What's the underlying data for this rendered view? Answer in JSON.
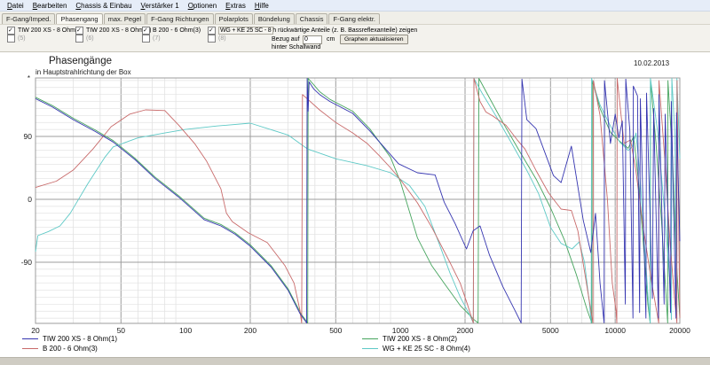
{
  "menu": {
    "items": [
      "Datei",
      "Bearbeiten",
      "Chassis & Einbau",
      "Verstärker 1",
      "Optionen",
      "Extras",
      "Hilfe"
    ]
  },
  "tabs": {
    "active": "Phasengang",
    "items": [
      "F-Gang/Imped.",
      "Phasengang",
      "max. Pegel",
      "F-Gang Richtungen",
      "Polarplots",
      "Bündelung",
      "Chassis",
      "F-Gang elektr."
    ]
  },
  "controls": {
    "chassis_checkboxes": [
      {
        "label": "TIW 200 XS - 8 Ohm(1)",
        "checked": true,
        "sub": "(5)",
        "x": 8
      },
      {
        "label": "TIW 200 XS - 8 Ohm(2)",
        "checked": true,
        "sub": "(6)",
        "x": 85
      },
      {
        "label": "B 200 - 6 Ohm(3)",
        "checked": true,
        "sub": "(7)",
        "x": 160
      },
      {
        "label": "WG + KE 25 SC - 8 Oh",
        "checked": true,
        "sub": "(8)",
        "x": 234,
        "boxed": true
      }
    ],
    "rear_option_label": "auch rückwärtige Anteile (z. B. Bassreflexanteile) zeigen",
    "bezug_label": "Bezug auf",
    "bezug_value": "0",
    "unit_label": "cm",
    "update_button": "Graphen aktualisieren",
    "behind_label": "hinter Schallwand"
  },
  "chart_data": {
    "type": "line",
    "title": "Phasengänge",
    "subtitle": "in Hauptstrahlrichtung der Box",
    "date": "10.02.2013",
    "axis_marker": "*",
    "x_axis": {
      "scale": "log",
      "min": 20,
      "max": 20000,
      "ticks": [
        20,
        50,
        100,
        200,
        500,
        1000,
        2000,
        5000,
        10000,
        20000
      ],
      "grid": true
    },
    "y_axis": {
      "unit": "degrees",
      "min": -178,
      "max": 175,
      "ticks": [
        90,
        0,
        -90
      ],
      "minor_step": 10,
      "grid": true
    },
    "series": [
      {
        "name": "TIW 200 XS - 8 Ohm(2)",
        "color": "#46a45e",
        "points": [
          [
            20,
            146
          ],
          [
            24,
            134
          ],
          [
            30,
            116
          ],
          [
            38,
            99
          ],
          [
            46,
            84
          ],
          [
            58,
            59
          ],
          [
            72,
            32
          ],
          [
            93,
            5
          ],
          [
            122,
            -27
          ],
          [
            146,
            -36
          ],
          [
            170,
            -48
          ],
          [
            200,
            -65
          ],
          [
            250,
            -95
          ],
          [
            300,
            -128
          ],
          [
            345,
            -164
          ],
          [
            370,
            -177
          ],
          [
            372,
            174
          ],
          [
            400,
            162
          ],
          [
            421,
            154
          ],
          [
            470,
            143
          ],
          [
            600,
            126
          ],
          [
            720,
            101
          ],
          [
            900,
            60
          ],
          [
            1000,
            25
          ],
          [
            1200,
            -55
          ],
          [
            1400,
            -95
          ],
          [
            1600,
            -120
          ],
          [
            1900,
            -152
          ],
          [
            2200,
            -172
          ],
          [
            2300,
            -177
          ],
          [
            2320,
            174
          ],
          [
            2600,
            145
          ],
          [
            3000,
            110
          ],
          [
            3600,
            68
          ],
          [
            4300,
            28
          ],
          [
            5000,
            -12
          ],
          [
            5800,
            -58
          ],
          [
            6600,
            -108
          ],
          [
            7400,
            -158
          ],
          [
            7780,
            -177
          ],
          [
            7820,
            170
          ],
          [
            8500,
            130
          ],
          [
            9500,
            96
          ],
          [
            10500,
            83
          ],
          [
            11500,
            73
          ],
          [
            12200,
            90
          ],
          [
            12800,
            30
          ],
          [
            13500,
            -60
          ],
          [
            14200,
            -150
          ],
          [
            14550,
            -177
          ],
          [
            14600,
            170
          ],
          [
            15500,
            80
          ],
          [
            16500,
            -40
          ],
          [
            17200,
            -130
          ],
          [
            17550,
            -177
          ],
          [
            17600,
            170
          ],
          [
            18500,
            60
          ],
          [
            19200,
            -80
          ],
          [
            20000,
            -170
          ]
        ]
      },
      {
        "name": "WG + KE 25 SC - 8 Ohm(4)",
        "color": "#5ec9c6",
        "points": [
          [
            20,
            -75
          ],
          [
            20.5,
            -52
          ],
          [
            23,
            -46
          ],
          [
            26,
            -38
          ],
          [
            29,
            -20
          ],
          [
            35,
            22
          ],
          [
            42,
            60
          ],
          [
            46,
            75
          ],
          [
            60,
            88
          ],
          [
            80,
            95
          ],
          [
            100,
            100
          ],
          [
            140,
            105
          ],
          [
            200,
            109
          ],
          [
            260,
            98
          ],
          [
            300,
            92
          ],
          [
            370,
            72
          ],
          [
            500,
            58
          ],
          [
            700,
            48
          ],
          [
            900,
            38
          ],
          [
            1100,
            20
          ],
          [
            1300,
            -10
          ],
          [
            1500,
            -60
          ],
          [
            1700,
            -105
          ],
          [
            1900,
            -140
          ],
          [
            2100,
            -165
          ],
          [
            2185,
            -177
          ],
          [
            2200,
            174
          ],
          [
            2400,
            152
          ],
          [
            2800,
            118
          ],
          [
            3300,
            80
          ],
          [
            3900,
            40
          ],
          [
            4400,
            8
          ],
          [
            5000,
            -40
          ],
          [
            5600,
            -63
          ],
          [
            6300,
            -71
          ],
          [
            6800,
            -61
          ],
          [
            7200,
            -90
          ],
          [
            7600,
            -150
          ],
          [
            7730,
            -177
          ],
          [
            7770,
            174
          ],
          [
            8500,
            135
          ],
          [
            9500,
            105
          ],
          [
            10500,
            82
          ],
          [
            11500,
            70
          ],
          [
            12000,
            75
          ],
          [
            12500,
            95
          ],
          [
            13000,
            40
          ],
          [
            13600,
            -55
          ],
          [
            14200,
            -135
          ],
          [
            14550,
            -177
          ],
          [
            14600,
            174
          ],
          [
            15800,
            95
          ],
          [
            17000,
            -20
          ],
          [
            18000,
            -120
          ],
          [
            18280,
            -172
          ],
          [
            18350,
            174
          ],
          [
            19000,
            90
          ],
          [
            19280,
            -170
          ],
          [
            19380,
            174
          ],
          [
            20000,
            58
          ]
        ]
      },
      {
        "name": "B 200 - 6 Ohm(3)",
        "color": "#c86a6a",
        "points": [
          [
            20,
            17
          ],
          [
            25,
            26
          ],
          [
            30,
            42
          ],
          [
            37,
            72
          ],
          [
            45,
            104
          ],
          [
            55,
            122
          ],
          [
            65,
            128
          ],
          [
            80,
            127
          ],
          [
            93,
            106
          ],
          [
            110,
            80
          ],
          [
            125,
            55
          ],
          [
            146,
            15
          ],
          [
            155,
            -20
          ],
          [
            165,
            -32
          ],
          [
            196,
            -48
          ],
          [
            240,
            -62
          ],
          [
            290,
            -95
          ],
          [
            320,
            -120
          ],
          [
            340,
            -158
          ],
          [
            347,
            -177
          ],
          [
            350,
            150
          ],
          [
            420,
            128
          ],
          [
            500,
            110
          ],
          [
            600,
            95
          ],
          [
            700,
            80
          ],
          [
            800,
            62
          ],
          [
            900,
            45
          ],
          [
            1000,
            28
          ],
          [
            1200,
            -5
          ],
          [
            1400,
            -40
          ],
          [
            1700,
            -90
          ],
          [
            1900,
            -120
          ],
          [
            2050,
            -150
          ],
          [
            2185,
            -177
          ],
          [
            2200,
            174
          ],
          [
            2350,
            140
          ],
          [
            2500,
            125
          ],
          [
            2700,
            119
          ],
          [
            3100,
            106
          ],
          [
            3500,
            85
          ],
          [
            3800,
            72
          ],
          [
            4300,
            40
          ],
          [
            4900,
            9
          ],
          [
            5600,
            -14
          ],
          [
            6250,
            -16
          ],
          [
            6700,
            -45
          ],
          [
            7300,
            -115
          ],
          [
            7880,
            -177
          ],
          [
            7920,
            170
          ],
          [
            8500,
            120
          ],
          [
            9200,
            0
          ],
          [
            9700,
            -120
          ],
          [
            10100,
            -160
          ],
          [
            10180,
            -177
          ],
          [
            10220,
            174
          ],
          [
            11000,
            80
          ],
          [
            11800,
            85
          ],
          [
            12500,
            40
          ],
          [
            13500,
            -40
          ],
          [
            14800,
            -120
          ],
          [
            15950,
            -177
          ],
          [
            16000,
            170
          ],
          [
            17000,
            60
          ],
          [
            18000,
            -60
          ],
          [
            19000,
            -150
          ],
          [
            19380,
            -177
          ],
          [
            19420,
            170
          ],
          [
            20000,
            -170
          ]
        ]
      },
      {
        "name": "TIW 200 XS - 8 Ohm(1)",
        "color": "#3535b0",
        "points": [
          [
            20,
            144
          ],
          [
            24,
            132
          ],
          [
            30,
            114
          ],
          [
            38,
            97
          ],
          [
            46,
            82
          ],
          [
            58,
            57
          ],
          [
            72,
            30
          ],
          [
            93,
            3
          ],
          [
            122,
            -29
          ],
          [
            146,
            -38
          ],
          [
            170,
            -50
          ],
          [
            200,
            -67
          ],
          [
            250,
            -97
          ],
          [
            300,
            -130
          ],
          [
            340,
            -163
          ],
          [
            366,
            -177
          ],
          [
            368,
            174
          ],
          [
            372,
            126
          ],
          [
            376,
            168
          ],
          [
            395,
            158
          ],
          [
            421,
            150
          ],
          [
            470,
            140
          ],
          [
            600,
            123
          ],
          [
            720,
            98
          ],
          [
            980,
            51
          ],
          [
            1200,
            38
          ],
          [
            1450,
            35
          ],
          [
            1600,
            -4
          ],
          [
            1800,
            -35
          ],
          [
            2030,
            -71
          ],
          [
            2180,
            -45
          ],
          [
            2350,
            -38
          ],
          [
            2600,
            -80
          ],
          [
            3000,
            -125
          ],
          [
            3400,
            -158
          ],
          [
            3650,
            -177
          ],
          [
            3680,
            172
          ],
          [
            3880,
            114
          ],
          [
            4280,
            101
          ],
          [
            5160,
            34
          ],
          [
            5600,
            24
          ],
          [
            6250,
            76
          ],
          [
            7100,
            -30
          ],
          [
            7700,
            -76
          ],
          [
            8100,
            -20
          ],
          [
            8500,
            -120
          ],
          [
            8880,
            -177
          ],
          [
            8920,
            170
          ],
          [
            9500,
            80
          ],
          [
            10000,
            122
          ],
          [
            10400,
            88
          ],
          [
            10800,
            112
          ],
          [
            11150,
            -150
          ],
          [
            11200,
            172
          ],
          [
            11700,
            98
          ],
          [
            12100,
            -170
          ],
          [
            12150,
            162
          ],
          [
            12700,
            148
          ],
          [
            13000,
            -162
          ],
          [
            13100,
            144
          ],
          [
            13900,
            -170
          ],
          [
            14000,
            152
          ],
          [
            14900,
            -142
          ],
          [
            15100,
            130
          ],
          [
            15900,
            -170
          ],
          [
            16000,
            150
          ],
          [
            16900,
            -150
          ],
          [
            17100,
            122
          ],
          [
            18100,
            -162
          ],
          [
            18250,
            140
          ],
          [
            19200,
            -170
          ],
          [
            19300,
            124
          ],
          [
            20000,
            -60
          ]
        ]
      }
    ]
  },
  "legend": {
    "columns": [
      [
        {
          "label": "TIW 200 XS - 8 Ohm(1)",
          "color": "#3535b0"
        },
        {
          "label": "B 200 - 6 Ohm(3)",
          "color": "#c86a6a"
        }
      ],
      [
        {
          "label": "TIW 200 XS - 8 Ohm(2)",
          "color": "#46a45e"
        },
        {
          "label": "WG + KE 25 SC - 8 Ohm(4)",
          "color": "#5ec9c6"
        }
      ]
    ]
  }
}
